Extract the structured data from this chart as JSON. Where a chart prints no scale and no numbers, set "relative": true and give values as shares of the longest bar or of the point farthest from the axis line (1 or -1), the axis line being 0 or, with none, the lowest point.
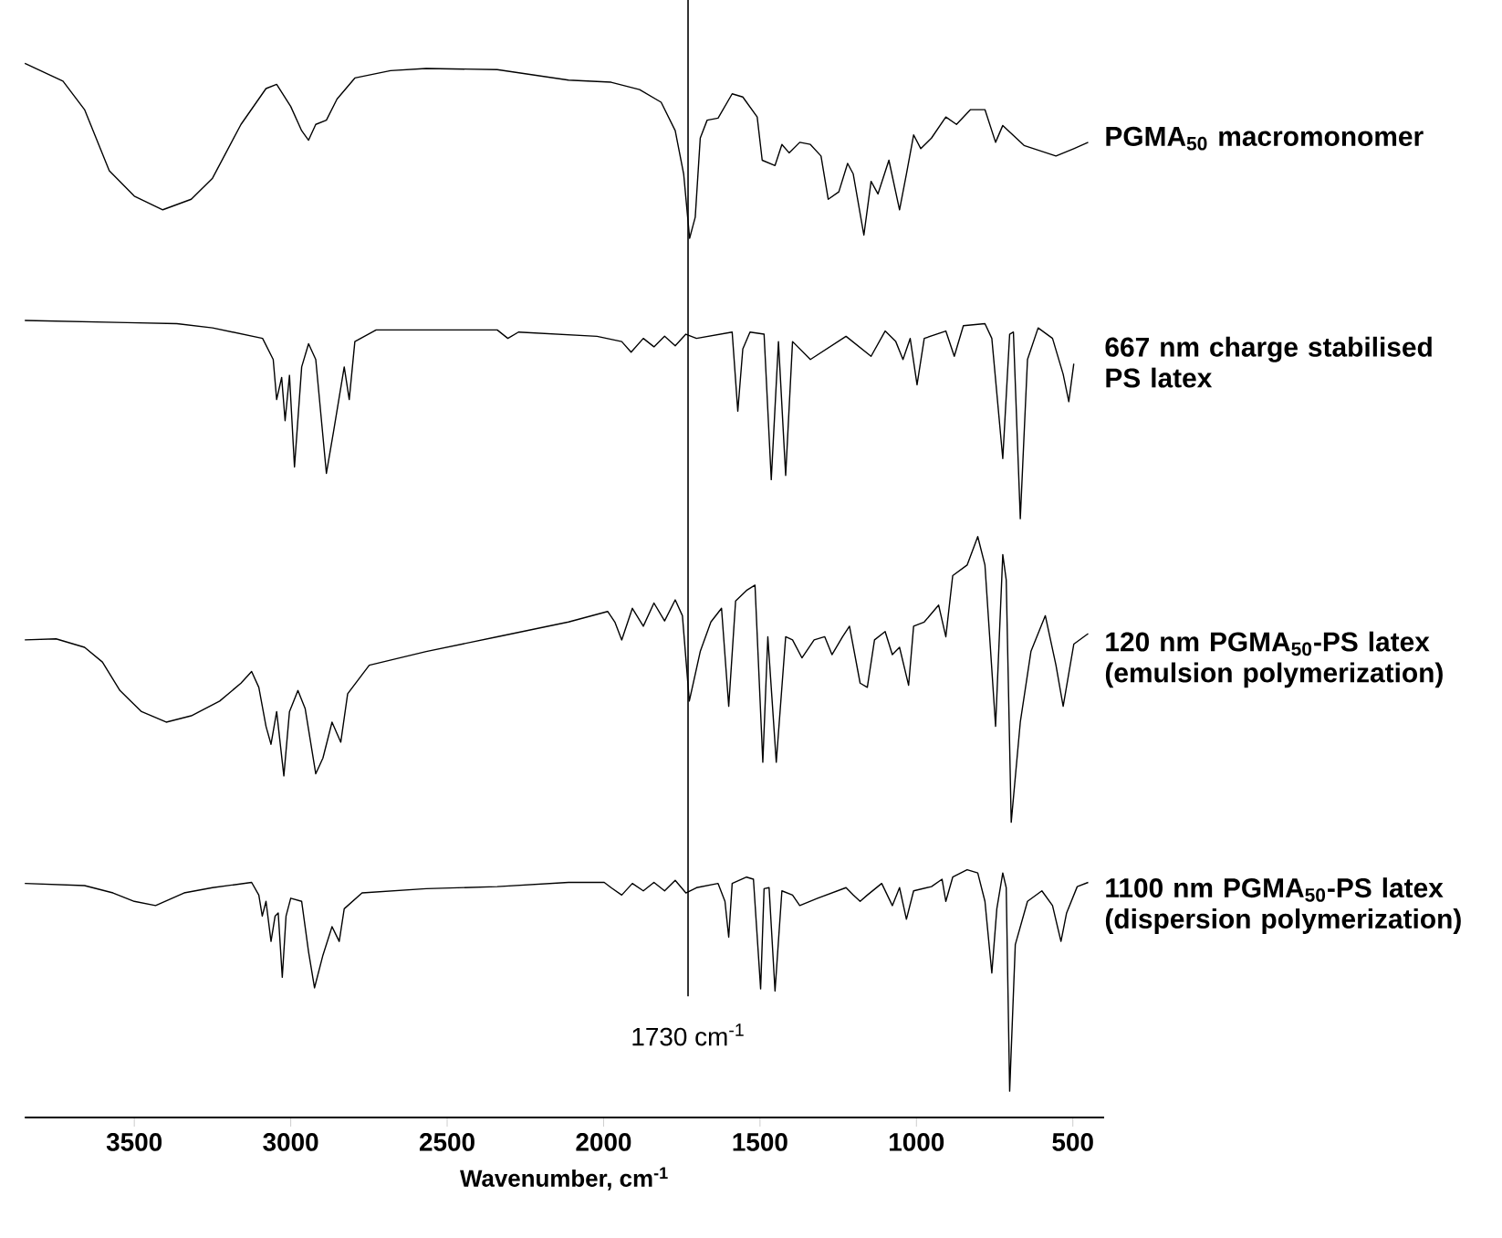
{
  "chart_data": {
    "type": "line",
    "relative": true,
    "xlabel": "Wavenumber, cm$^{-1}$",
    "xlim": [
      3850,
      400
    ],
    "xticks": [
      3500,
      3000,
      2500,
      2000,
      1500,
      1000,
      500
    ],
    "ref_lines": [
      {
        "axis": "x",
        "value": 1730,
        "label": "1730 cm$^{-1}$"
      }
    ],
    "series": [
      {
        "name": "PGMA$_{50}$ macromonomer",
        "color": "#000000",
        "x": [
          3850,
          3728,
          3659,
          3580,
          3500,
          3409,
          3318,
          3250,
          3159,
          3079,
          3045,
          3000,
          2965,
          2943,
          2920,
          2886,
          2852,
          2795,
          2681,
          2567,
          2340,
          2112,
          1976,
          1885,
          1816,
          1771,
          1744,
          1725,
          1707,
          1691,
          1669,
          1634,
          1589,
          1555,
          1509,
          1493,
          1452,
          1430,
          1407,
          1373,
          1339,
          1305,
          1282,
          1248,
          1220,
          1202,
          1168,
          1145,
          1123,
          1088,
          1054,
          1032,
          1009,
          986,
          952,
          906,
          872,
          827,
          781,
          747,
          724,
          656,
          554,
          497,
          451
        ],
        "values": [
          1.0,
          0.983,
          0.956,
          0.898,
          0.874,
          0.861,
          0.871,
          0.891,
          0.942,
          0.976,
          0.98,
          0.959,
          0.936,
          0.927,
          0.942,
          0.946,
          0.966,
          0.986,
          0.993,
          0.995,
          0.994,
          0.984,
          0.982,
          0.975,
          0.963,
          0.936,
          0.895,
          0.834,
          0.854,
          0.929,
          0.946,
          0.948,
          0.971,
          0.968,
          0.949,
          0.908,
          0.903,
          0.923,
          0.915,
          0.925,
          0.923,
          0.912,
          0.871,
          0.878,
          0.905,
          0.895,
          0.837,
          0.888,
          0.876,
          0.908,
          0.861,
          0.895,
          0.932,
          0.919,
          0.929,
          0.949,
          0.942,
          0.956,
          0.956,
          0.925,
          0.941,
          0.922,
          0.912,
          0.919,
          0.925
        ]
      },
      {
        "name": "667 nm charge stabilised PS latex",
        "color": "#000000",
        "x": [
          3850,
          3523,
          3364,
          3250,
          3090,
          3056,
          3045,
          3029,
          3018,
          3004,
          2988,
          2965,
          2943,
          2920,
          2886,
          2863,
          2829,
          2813,
          2795,
          2727,
          2340,
          2306,
          2272,
          2021,
          1942,
          1912,
          1873,
          1839,
          1805,
          1771,
          1737,
          1703,
          1589,
          1571,
          1555,
          1532,
          1487,
          1464,
          1441,
          1418,
          1396,
          1339,
          1225,
          1145,
          1100,
          1066,
          1043,
          1020,
          998,
          975,
          906,
          879,
          850,
          781,
          759,
          724,
          702,
          690,
          668,
          645,
          611,
          565,
          531,
          513,
          497
        ],
        "values": [
          0.756,
          0.754,
          0.753,
          0.749,
          0.739,
          0.719,
          0.681,
          0.702,
          0.661,
          0.704,
          0.617,
          0.712,
          0.734,
          0.719,
          0.611,
          0.651,
          0.712,
          0.681,
          0.736,
          0.747,
          0.747,
          0.739,
          0.745,
          0.741,
          0.736,
          0.726,
          0.739,
          0.731,
          0.741,
          0.732,
          0.743,
          0.739,
          0.745,
          0.67,
          0.729,
          0.745,
          0.743,
          0.605,
          0.736,
          0.609,
          0.736,
          0.719,
          0.741,
          0.722,
          0.746,
          0.736,
          0.719,
          0.739,
          0.695,
          0.739,
          0.746,
          0.722,
          0.751,
          0.753,
          0.739,
          0.625,
          0.743,
          0.745,
          0.568,
          0.719,
          0.749,
          0.739,
          0.705,
          0.679,
          0.715
        ]
      },
      {
        "name": "120 nm PGMA$_{50}$-PS latex (emulsion polymerization)",
        "color": "#000000",
        "x": [
          3850,
          3750,
          3659,
          3602,
          3546,
          3477,
          3398,
          3318,
          3227,
          3159,
          3125,
          3102,
          3079,
          3063,
          3045,
          3022,
          3004,
          2977,
          2954,
          2920,
          2897,
          2868,
          2840,
          2818,
          2749,
          2567,
          2340,
          2112,
          1987,
          1964,
          1942,
          1908,
          1873,
          1839,
          1805,
          1771,
          1748,
          1726,
          1691,
          1657,
          1623,
          1600,
          1578,
          1543,
          1516,
          1491,
          1475,
          1448,
          1418,
          1396,
          1366,
          1327,
          1293,
          1270,
          1236,
          1214,
          1180,
          1157,
          1134,
          1100,
          1077,
          1054,
          1025,
          1009,
          975,
          929,
          906,
          884,
          838,
          804,
          781,
          747,
          724,
          713,
          697,
          668,
          634,
          588,
          554,
          531,
          497,
          451
        ],
        "values": [
          0.453,
          0.454,
          0.446,
          0.432,
          0.405,
          0.385,
          0.375,
          0.381,
          0.395,
          0.412,
          0.423,
          0.408,
          0.371,
          0.354,
          0.385,
          0.324,
          0.385,
          0.405,
          0.388,
          0.326,
          0.341,
          0.375,
          0.356,
          0.402,
          0.429,
          0.442,
          0.456,
          0.47,
          0.48,
          0.47,
          0.453,
          0.483,
          0.466,
          0.488,
          0.471,
          0.491,
          0.476,
          0.395,
          0.442,
          0.47,
          0.483,
          0.39,
          0.49,
          0.5,
          0.505,
          0.337,
          0.456,
          0.337,
          0.456,
          0.453,
          0.436,
          0.453,
          0.456,
          0.439,
          0.456,
          0.466,
          0.412,
          0.408,
          0.453,
          0.461,
          0.439,
          0.446,
          0.41,
          0.466,
          0.47,
          0.486,
          0.456,
          0.514,
          0.524,
          0.551,
          0.524,
          0.371,
          0.534,
          0.51,
          0.28,
          0.375,
          0.442,
          0.476,
          0.429,
          0.39,
          0.449,
          0.459
        ]
      },
      {
        "name": "1100 nm PGMA$_{50}$-PS latex (dispersion polymerization)",
        "color": "#000000",
        "x": [
          3850,
          3659,
          3568,
          3500,
          3432,
          3341,
          3250,
          3125,
          3102,
          3091,
          3079,
          3063,
          3050,
          3040,
          3027,
          3015,
          3000,
          2965,
          2943,
          2924,
          2897,
          2868,
          2845,
          2829,
          2772,
          2567,
          2340,
          2112,
          1998,
          1976,
          1942,
          1908,
          1873,
          1839,
          1805,
          1771,
          1737,
          1703,
          1634,
          1612,
          1600,
          1589,
          1543,
          1521,
          1498,
          1487,
          1471,
          1452,
          1430,
          1396,
          1373,
          1316,
          1225,
          1202,
          1180,
          1157,
          1111,
          1077,
          1054,
          1032,
          1009,
          952,
          918,
          906,
          884,
          838,
          804,
          781,
          759,
          743,
          724,
          713,
          702,
          684,
          645,
          599,
          565,
          538,
          520,
          486,
          451
        ],
        "values": [
          0.222,
          0.22,
          0.213,
          0.205,
          0.201,
          0.213,
          0.218,
          0.223,
          0.211,
          0.191,
          0.205,
          0.167,
          0.191,
          0.194,
          0.133,
          0.191,
          0.208,
          0.205,
          0.157,
          0.123,
          0.154,
          0.181,
          0.167,
          0.198,
          0.213,
          0.217,
          0.219,
          0.223,
          0.223,
          0.218,
          0.211,
          0.222,
          0.215,
          0.223,
          0.215,
          0.225,
          0.213,
          0.218,
          0.222,
          0.205,
          0.171,
          0.222,
          0.228,
          0.226,
          0.122,
          0.217,
          0.218,
          0.12,
          0.215,
          0.211,
          0.201,
          0.208,
          0.218,
          0.211,
          0.205,
          0.211,
          0.222,
          0.201,
          0.218,
          0.188,
          0.215,
          0.219,
          0.226,
          0.205,
          0.228,
          0.235,
          0.232,
          0.205,
          0.137,
          0.198,
          0.232,
          0.218,
          0.025,
          0.164,
          0.205,
          0.215,
          0.201,
          0.167,
          0.194,
          0.219,
          0.223
        ]
      }
    ]
  }
}
